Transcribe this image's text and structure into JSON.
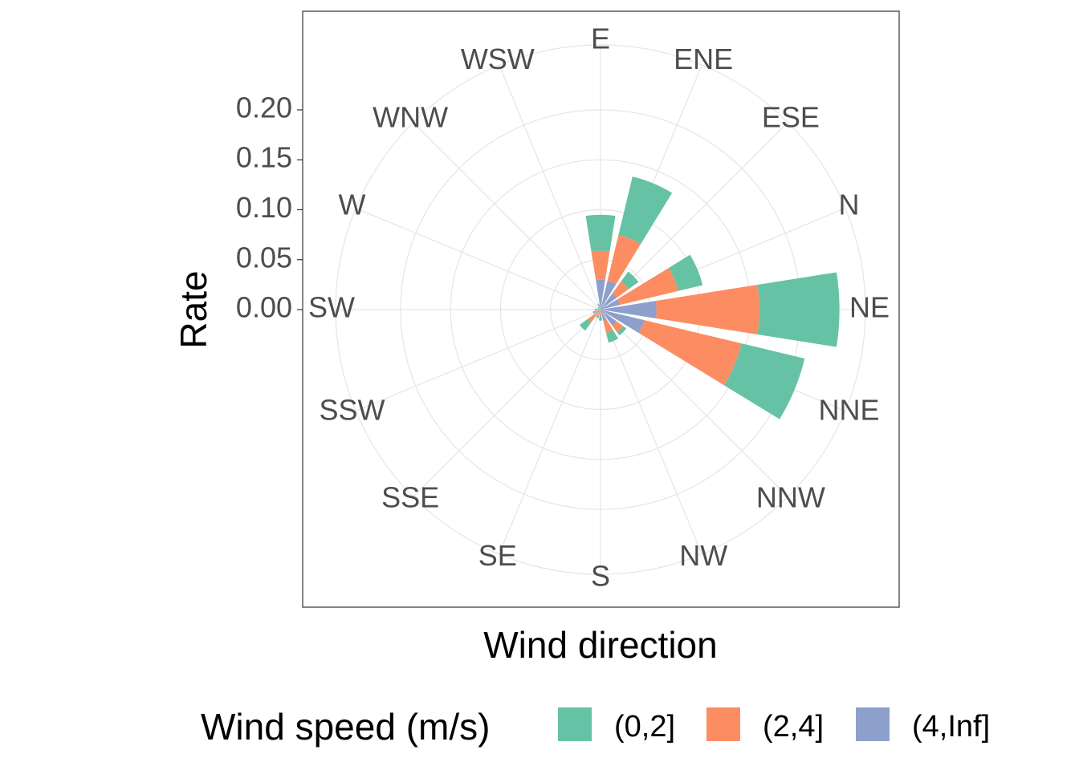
{
  "chart_data": {
    "type": "bar",
    "polar": true,
    "stacked": true,
    "x_label": "Wind direction",
    "y_label": "Rate",
    "legend_title": "Wind speed (m/s)",
    "legend_position": "bottom",
    "grid": true,
    "categories": [
      "E",
      "ENE",
      "ESE",
      "N",
      "NE",
      "NNE",
      "NNW",
      "NW",
      "S",
      "SE",
      "SSE",
      "SSW",
      "SW",
      "W",
      "WNW",
      "WSW"
    ],
    "series": [
      {
        "name": "(0,2]",
        "color": "#66c2a5",
        "values": [
          0.036,
          0.06,
          0.012,
          0.025,
          0.08,
          0.065,
          0.004,
          0.01,
          0.004,
          0.003,
          0.01,
          0.003,
          0.002,
          0.001,
          0.001,
          0.002
        ]
      },
      {
        "name": "(2,4]",
        "color": "#fc8d62",
        "values": [
          0.029,
          0.047,
          0.015,
          0.06,
          0.103,
          0.1,
          0.008,
          0.012,
          0.004,
          0.004,
          0.01,
          0.003,
          0.002,
          0.001,
          0.001,
          0.002
        ]
      },
      {
        "name": "(4,Inf]",
        "color": "#8da0cb",
        "values": [
          0.03,
          0.03,
          0.02,
          0.02,
          0.056,
          0.045,
          0.02,
          0.012,
          0.003,
          0.002,
          0.006,
          0.002,
          0.002,
          0.001,
          0.001,
          0.002
        ]
      }
    ],
    "ylim": [
      0,
      0.265
    ],
    "yticks": [
      {
        "value": 0,
        "label": "0.00"
      },
      {
        "value": 0.05,
        "label": "0.05"
      },
      {
        "value": 0.1,
        "label": "0.10"
      },
      {
        "value": 0.15,
        "label": "0.15"
      },
      {
        "value": 0.2,
        "label": "0.20"
      }
    ]
  }
}
